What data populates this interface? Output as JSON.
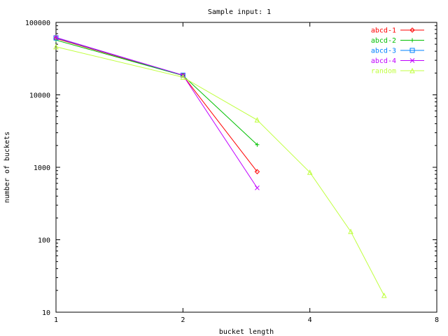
{
  "chart_data": {
    "type": "line",
    "title": "Sample input: 1",
    "xlabel": "bucket length",
    "ylabel": "number of buckets",
    "x_scale": "log2",
    "y_scale": "log10",
    "xlim": [
      1,
      8
    ],
    "ylim": [
      10,
      100000
    ],
    "x_ticks": [
      1,
      2,
      4,
      8
    ],
    "x_tick_labels": [
      "1",
      "2",
      "4",
      "8"
    ],
    "y_ticks": [
      10,
      100,
      1000,
      10000,
      100000
    ],
    "y_tick_labels": [
      "10",
      "100",
      "1000",
      "10000",
      "100000"
    ],
    "grid": false,
    "legend_position": "top-right",
    "series": [
      {
        "name": "abcd-1",
        "color": "#ff0000",
        "marker": "diamond",
        "x": [
          1,
          2,
          3
        ],
        "y": [
          60000,
          18500,
          870
        ]
      },
      {
        "name": "abcd-2",
        "color": "#00c000",
        "marker": "plus",
        "x": [
          1,
          2,
          3
        ],
        "y": [
          57000,
          18500,
          2050
        ]
      },
      {
        "name": "abcd-3",
        "color": "#0080ff",
        "marker": "square",
        "x": [
          1,
          2
        ],
        "y": [
          61000,
          18700
        ]
      },
      {
        "name": "abcd-4",
        "color": "#c000ff",
        "marker": "x",
        "x": [
          1,
          2,
          3
        ],
        "y": [
          62000,
          18700,
          520
        ]
      },
      {
        "name": "random",
        "color": "#c0ff40",
        "marker": "triangle",
        "x": [
          1,
          2,
          3,
          4,
          5,
          6
        ],
        "y": [
          46000,
          17500,
          4500,
          850,
          130,
          17
        ]
      }
    ]
  }
}
